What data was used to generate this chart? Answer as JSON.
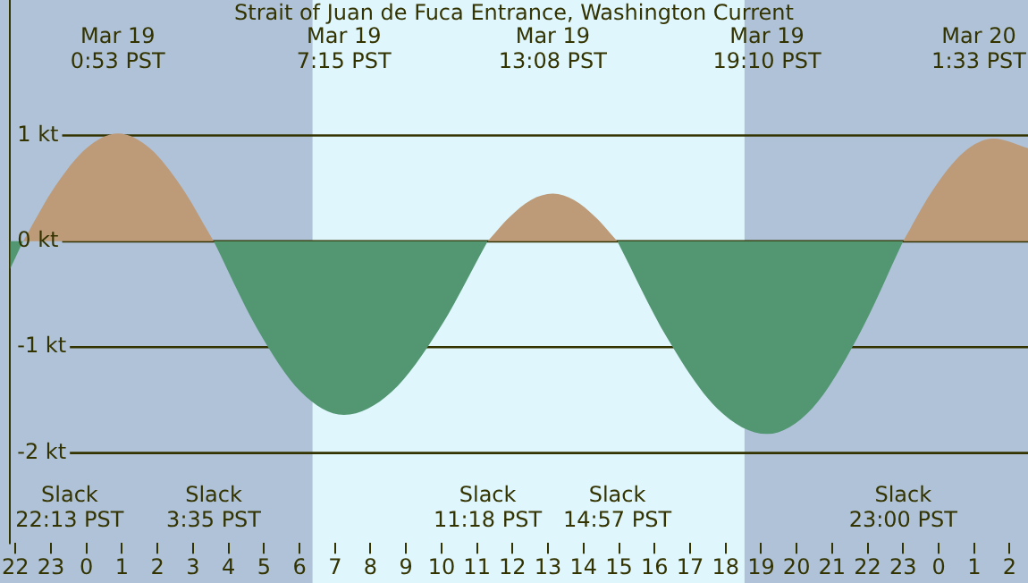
{
  "chart_data": {
    "type": "area",
    "title": "Strait of Juan de Fuca Entrance, Washington Current",
    "xlim": [
      "--03-18T21:51",
      "--03-20T02:31"
    ],
    "ylim": [
      -2.85,
      2.28
    ],
    "xticks": [
      {
        "value": "--03-18T22:00",
        "label": "22"
      },
      {
        "value": "--03-18T23:00",
        "label": "23"
      },
      {
        "value": "--03-19T00:00",
        "label": "0"
      },
      {
        "value": "--03-19T01:00",
        "label": "1"
      },
      {
        "value": "--03-19T02:00",
        "label": "2"
      },
      {
        "value": "--03-19T03:00",
        "label": "3"
      },
      {
        "value": "--03-19T04:00",
        "label": "4"
      },
      {
        "value": "--03-19T05:00",
        "label": "5"
      },
      {
        "value": "--03-19T06:00",
        "label": "6"
      },
      {
        "value": "--03-19T07:00",
        "label": "7"
      },
      {
        "value": "--03-19T08:00",
        "label": "8"
      },
      {
        "value": "--03-19T09:00",
        "label": "9"
      },
      {
        "value": "--03-19T10:00",
        "label": "10"
      },
      {
        "value": "--03-19T11:00",
        "label": "11"
      },
      {
        "value": "--03-19T12:00",
        "label": "12"
      },
      {
        "value": "--03-19T13:00",
        "label": "13"
      },
      {
        "value": "--03-19T14:00",
        "label": "14"
      },
      {
        "value": "--03-19T15:00",
        "label": "15"
      },
      {
        "value": "--03-19T16:00",
        "label": "16"
      },
      {
        "value": "--03-19T17:00",
        "label": "17"
      },
      {
        "value": "--03-19T18:00",
        "label": "18"
      },
      {
        "value": "--03-19T19:00",
        "label": "19"
      },
      {
        "value": "--03-19T20:00",
        "label": "20"
      },
      {
        "value": "--03-19T21:00",
        "label": "21"
      },
      {
        "value": "--03-19T22:00",
        "label": "22"
      },
      {
        "value": "--03-19T23:00",
        "label": "23"
      },
      {
        "value": "--03-20T00:00",
        "label": "0"
      },
      {
        "value": "--03-20T01:00",
        "label": "1"
      },
      {
        "value": "--03-20T02:00",
        "label": "2"
      }
    ],
    "yticks": [
      {
        "value": 1,
        "label": "1 kt"
      },
      {
        "value": 0,
        "label": "0 kt"
      },
      {
        "value": -1,
        "label": "-1 kt"
      },
      {
        "value": -2,
        "label": "-2 kt"
      }
    ],
    "grid": "y",
    "legend": false,
    "bands": [
      {
        "axis": "x",
        "from": "--03-19T06:22",
        "to": "--03-19T18:32",
        "color": "#dff6fd"
      }
    ],
    "series": [
      {
        "color": "#bd9a78",
        "x": [
          "--03-18T22:13",
          "--03-18T23:06",
          "--03-19T00:00",
          "--03-19T00:53",
          "--03-19T01:47",
          "--03-19T02:41",
          "--03-19T03:35",
          "--03-19T07:00",
          "--03-19T11:18",
          "--03-19T11:55",
          "--03-19T12:31",
          "--03-19T13:08",
          "--03-19T13:44",
          "--03-19T14:20",
          "--03-19T14:57",
          "--03-19T19:00",
          "--03-19T23:00",
          "--03-19T23:51",
          "--03-20T00:42",
          "--03-20T01:33",
          "--03-20T02:31"
        ],
        "values": [
          0,
          0.51,
          0.88,
          1.02,
          0.88,
          0.51,
          0,
          null,
          0,
          0.23,
          0.39,
          0.45,
          0.39,
          0.23,
          0,
          null,
          0,
          0.49,
          0.84,
          0.97,
          0.88
        ]
      },
      {
        "color": "#529672",
        "x": [
          "--03-18T21:51",
          "--03-18T22:13",
          "--03-19T00:00",
          "--03-19T03:35",
          "--03-19T04:48",
          "--03-19T06:02",
          "--03-19T07:15",
          "--03-19T08:36",
          "--03-19T09:57",
          "--03-19T11:18",
          "--03-19T13:00",
          "--03-19T14:57",
          "--03-19T16:21",
          "--03-19T17:46",
          "--03-19T19:10",
          "--03-19T20:26",
          "--03-19T21:43",
          "--03-19T23:00"
        ],
        "values": [
          -0.26,
          0,
          null,
          0,
          -0.82,
          -1.42,
          -1.64,
          -1.42,
          -0.82,
          0,
          null,
          0,
          -0.91,
          -1.58,
          -1.82,
          -1.58,
          -0.91,
          0
        ]
      }
    ],
    "annotations": [
      "Mar 19\n0:53 PST",
      "Mar 19\n7:15 PST",
      "Mar 19\n13:08 PST",
      "Mar 19\n19:10 PST",
      "Mar 20\n1:33 PST",
      "Slack\n22:13 PST",
      "Slack\n3:35 PST",
      "Slack\n11:18 PST",
      "Slack\n14:57 PST",
      "Slack\n23:00 PST"
    ]
  }
}
